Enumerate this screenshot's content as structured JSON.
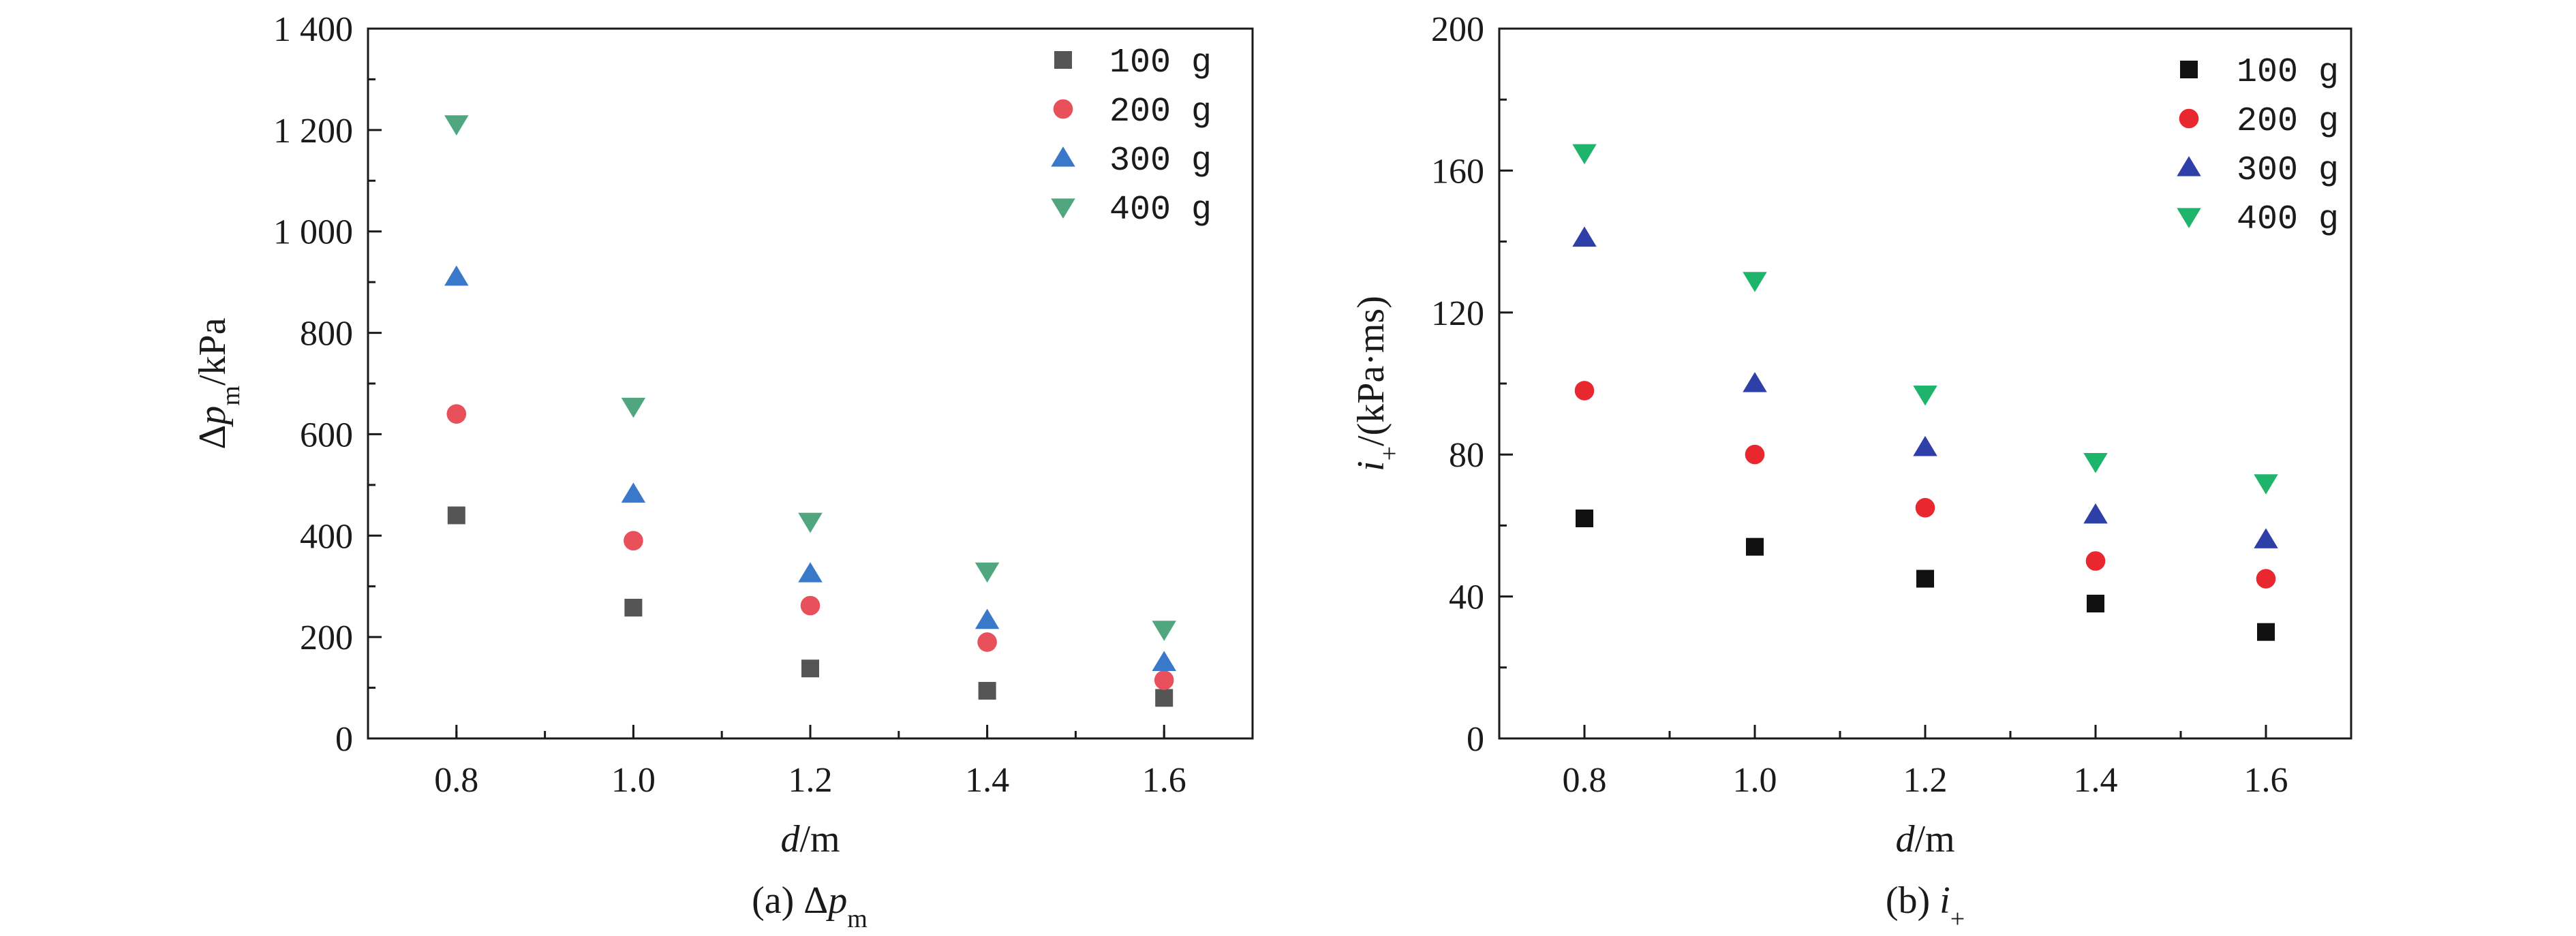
{
  "chart_data": [
    {
      "type": "scatter",
      "caption_prefix": "(a) Δ",
      "caption_symbol": "p",
      "caption_sub": "m",
      "ylabel_prefix": "Δ",
      "ylabel_symbol": "p",
      "ylabel_sub": "m",
      "ylabel_suffix": "/kPa",
      "xlabel_symbol": "d",
      "xlabel_suffix": "/m",
      "xlim": [
        0.7,
        1.7
      ],
      "ylim": [
        0,
        1400
      ],
      "x_ticks": [
        0.8,
        1.0,
        1.2,
        1.4,
        1.6
      ],
      "x_tick_labels": [
        "0.8",
        "1.0",
        "1.2",
        "1.4",
        "1.6"
      ],
      "y_ticks": [
        0,
        200,
        400,
        600,
        800,
        1000,
        1200,
        1400
      ],
      "y_tick_labels": [
        "0",
        "200",
        "400",
        "600",
        "800",
        "1 000",
        "1 200",
        "1 400"
      ],
      "legend_position": "top-right",
      "x": [
        0.8,
        1.0,
        1.2,
        1.4,
        1.6
      ],
      "series": [
        {
          "name": "100 g",
          "marker": "square",
          "color": "#555555",
          "values": [
            440,
            258,
            138,
            94,
            80
          ]
        },
        {
          "name": "200 g",
          "marker": "circle",
          "color": "#e8505b",
          "values": [
            640,
            390,
            262,
            190,
            115
          ]
        },
        {
          "name": "300 g",
          "marker": "triangle-up",
          "color": "#3a78c9",
          "values": [
            910,
            482,
            325,
            233,
            150
          ]
        },
        {
          "name": "400 g",
          "marker": "triangle-down",
          "color": "#4fa67f",
          "values": [
            1212,
            655,
            428,
            330,
            215
          ]
        }
      ]
    },
    {
      "type": "scatter",
      "caption_prefix": "(b) ",
      "caption_symbol": "i",
      "caption_sub": "+",
      "ylabel_prefix": "",
      "ylabel_symbol": "i",
      "ylabel_sub": "+",
      "ylabel_suffix": "/(kPa·ms)",
      "xlabel_symbol": "d",
      "xlabel_suffix": "/m",
      "xlim": [
        0.7,
        1.7
      ],
      "ylim": [
        0,
        200
      ],
      "x_ticks": [
        0.8,
        1.0,
        1.2,
        1.4,
        1.6
      ],
      "x_tick_labels": [
        "0.8",
        "1.0",
        "1.2",
        "1.4",
        "1.6"
      ],
      "y_ticks": [
        0,
        40,
        80,
        120,
        160,
        200
      ],
      "y_tick_labels": [
        "0",
        "40",
        "80",
        "120",
        "160",
        "200"
      ],
      "legend_position": "top-right",
      "x": [
        0.8,
        1.0,
        1.2,
        1.4,
        1.6
      ],
      "series": [
        {
          "name": "100 g",
          "marker": "square",
          "color": "#111111",
          "values": [
            62,
            54,
            45,
            38,
            30
          ]
        },
        {
          "name": "200 g",
          "marker": "circle",
          "color": "#e8272f",
          "values": [
            98,
            80,
            65,
            50,
            45
          ]
        },
        {
          "name": "300 g",
          "marker": "triangle-up",
          "color": "#2e3fa8",
          "values": [
            141,
            100,
            82,
            63,
            56
          ]
        },
        {
          "name": "400 g",
          "marker": "triangle-down",
          "color": "#1fb46b",
          "values": [
            165,
            129,
            97,
            78,
            72
          ]
        }
      ]
    }
  ]
}
